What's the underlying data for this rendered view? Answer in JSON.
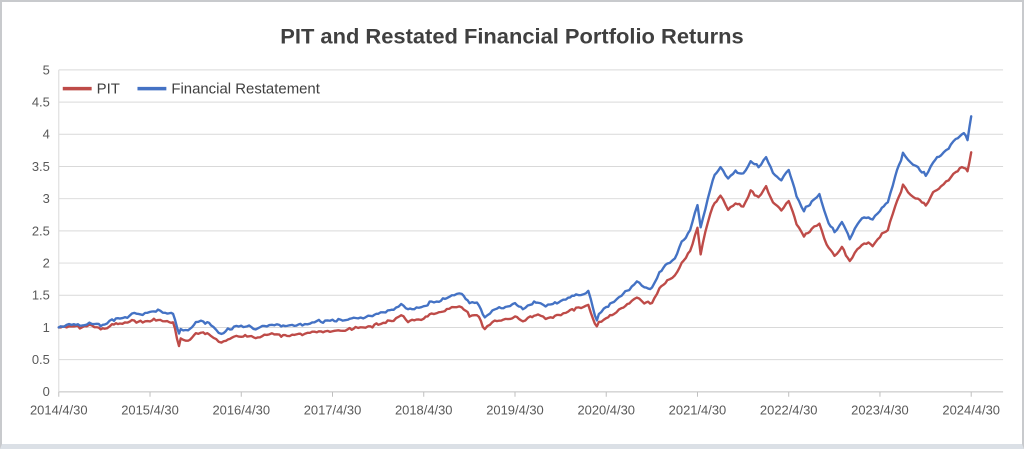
{
  "chart_data": {
    "type": "line",
    "title": "PIT and Restated Financial Portfolio Returns",
    "xlabel": "",
    "ylabel": "",
    "ylim": [
      0,
      5
    ],
    "ytick_step": 0.5,
    "grid": "horizontal",
    "legend_position": "top-left",
    "yticks": [
      "0",
      "0.5",
      "1",
      "1.5",
      "2",
      "2.5",
      "3",
      "3.5",
      "4",
      "4.5",
      "5"
    ],
    "xticks": [
      "2014/4/30",
      "2015/4/30",
      "2016/4/30",
      "2017/4/30",
      "2018/4/30",
      "2019/4/30",
      "2020/4/30",
      "2021/4/30",
      "2022/4/30",
      "2023/4/30",
      "2024/4/30"
    ],
    "style": {
      "grid_color": "#d9d9d9",
      "axis_color": "#bfbfbf",
      "tick_label_color": "#595959",
      "title_color": "#404040",
      "background": "#ffffff"
    },
    "x": [
      "2014/4/30",
      "2014/5/31",
      "2014/6/30",
      "2014/7/31",
      "2014/8/31",
      "2014/9/30",
      "2014/10/31",
      "2014/11/30",
      "2014/12/31",
      "2015/1/31",
      "2015/2/28",
      "2015/3/31",
      "2015/4/30",
      "2015/5/31",
      "2015/6/30",
      "2015/7/31",
      "2015/8/24",
      "2015/8/31",
      "2015/9/30",
      "2015/10/31",
      "2015/11/30",
      "2015/12/31",
      "2016/1/31",
      "2016/2/11",
      "2016/2/29",
      "2016/3/31",
      "2016/4/30",
      "2016/5/31",
      "2016/6/27",
      "2016/7/31",
      "2016/8/31",
      "2016/9/30",
      "2016/10/31",
      "2016/11/30",
      "2016/12/31",
      "2017/1/31",
      "2017/2/28",
      "2017/3/31",
      "2017/4/30",
      "2017/5/31",
      "2017/6/30",
      "2017/7/31",
      "2017/8/31",
      "2017/9/30",
      "2017/10/31",
      "2017/11/30",
      "2017/12/31",
      "2018/1/31",
      "2018/2/28",
      "2018/3/31",
      "2018/4/30",
      "2018/5/31",
      "2018/6/30",
      "2018/7/31",
      "2018/8/31",
      "2018/9/30",
      "2018/10/31",
      "2018/11/30",
      "2018/12/31",
      "2019/1/31",
      "2019/2/28",
      "2019/3/31",
      "2019/4/30",
      "2019/5/31",
      "2019/6/30",
      "2019/7/31",
      "2019/8/31",
      "2019/9/30",
      "2019/10/31",
      "2019/11/30",
      "2019/12/31",
      "2020/1/31",
      "2020/2/19",
      "2020/2/29",
      "2020/3/23",
      "2020/3/31",
      "2020/4/30",
      "2020/5/31",
      "2020/6/30",
      "2020/7/31",
      "2020/8/31",
      "2020/9/30",
      "2020/10/31",
      "2020/11/30",
      "2020/12/31",
      "2021/1/31",
      "2021/2/28",
      "2021/3/31",
      "2021/4/30",
      "2021/5/12",
      "2021/5/31",
      "2021/6/30",
      "2021/7/31",
      "2021/8/31",
      "2021/9/30",
      "2021/10/31",
      "2021/11/30",
      "2021/12/31",
      "2022/1/31",
      "2022/2/28",
      "2022/3/31",
      "2022/4/30",
      "2022/5/31",
      "2022/6/30",
      "2022/7/31",
      "2022/8/31",
      "2022/9/30",
      "2022/10/31",
      "2022/11/30",
      "2022/12/31",
      "2023/1/31",
      "2023/2/28",
      "2023/3/31",
      "2023/4/30",
      "2023/5/31",
      "2023/6/30",
      "2023/7/31",
      "2023/8/31",
      "2023/9/30",
      "2023/10/31",
      "2023/11/30",
      "2023/12/31",
      "2024/1/31",
      "2024/2/29",
      "2024/3/31",
      "2024/4/15",
      "2024/4/30"
    ],
    "series": [
      {
        "name": "PIT",
        "color": "#be4b48",
        "values": [
          1.0,
          1.01,
          1.02,
          1.0,
          1.04,
          1.0,
          0.97,
          1.05,
          1.06,
          1.08,
          1.1,
          1.08,
          1.11,
          1.12,
          1.09,
          1.08,
          0.72,
          0.82,
          0.79,
          0.9,
          0.92,
          0.88,
          0.79,
          0.76,
          0.8,
          0.85,
          0.86,
          0.87,
          0.83,
          0.88,
          0.89,
          0.88,
          0.87,
          0.89,
          0.9,
          0.92,
          0.94,
          0.93,
          0.94,
          0.96,
          0.97,
          0.99,
          0.98,
          1.01,
          1.06,
          1.09,
          1.11,
          1.18,
          1.1,
          1.12,
          1.14,
          1.22,
          1.23,
          1.27,
          1.31,
          1.32,
          1.19,
          1.21,
          0.97,
          1.07,
          1.11,
          1.13,
          1.18,
          1.09,
          1.16,
          1.2,
          1.14,
          1.17,
          1.2,
          1.25,
          1.3,
          1.31,
          1.35,
          1.22,
          1.0,
          1.08,
          1.15,
          1.21,
          1.29,
          1.38,
          1.47,
          1.39,
          1.38,
          1.6,
          1.73,
          1.8,
          2.0,
          2.18,
          2.55,
          2.15,
          2.5,
          2.88,
          3.05,
          2.82,
          2.93,
          2.88,
          3.12,
          3.02,
          3.18,
          2.95,
          2.82,
          2.97,
          2.62,
          2.42,
          2.52,
          2.6,
          2.28,
          2.12,
          2.25,
          2.02,
          2.2,
          2.32,
          2.28,
          2.42,
          2.52,
          2.88,
          3.2,
          3.05,
          3.0,
          2.9,
          3.1,
          3.18,
          3.28,
          3.42,
          3.5,
          3.42,
          3.72
        ]
      },
      {
        "name": "Financial Restatement",
        "color": "#4472c4",
        "values": [
          1.0,
          1.03,
          1.05,
          1.03,
          1.08,
          1.05,
          1.03,
          1.12,
          1.14,
          1.17,
          1.22,
          1.2,
          1.24,
          1.26,
          1.22,
          1.22,
          0.9,
          0.98,
          0.95,
          1.07,
          1.09,
          1.05,
          0.94,
          0.9,
          0.95,
          1.0,
          1.01,
          1.02,
          0.97,
          1.03,
          1.04,
          1.03,
          1.02,
          1.03,
          1.05,
          1.07,
          1.1,
          1.09,
          1.1,
          1.12,
          1.13,
          1.15,
          1.14,
          1.17,
          1.22,
          1.25,
          1.28,
          1.36,
          1.28,
          1.3,
          1.32,
          1.4,
          1.41,
          1.46,
          1.51,
          1.52,
          1.38,
          1.4,
          1.15,
          1.26,
          1.3,
          1.32,
          1.38,
          1.28,
          1.36,
          1.4,
          1.34,
          1.37,
          1.4,
          1.46,
          1.51,
          1.52,
          1.56,
          1.42,
          1.1,
          1.2,
          1.32,
          1.4,
          1.5,
          1.6,
          1.72,
          1.62,
          1.6,
          1.85,
          2.0,
          2.08,
          2.32,
          2.5,
          2.9,
          2.55,
          2.85,
          3.3,
          3.5,
          3.3,
          3.42,
          3.38,
          3.58,
          3.5,
          3.65,
          3.4,
          3.28,
          3.45,
          3.05,
          2.82,
          2.95,
          3.05,
          2.68,
          2.48,
          2.65,
          2.38,
          2.6,
          2.72,
          2.68,
          2.82,
          2.95,
          3.35,
          3.7,
          3.55,
          3.48,
          3.36,
          3.58,
          3.68,
          3.78,
          3.92,
          4.02,
          3.92,
          4.28
        ]
      }
    ]
  }
}
